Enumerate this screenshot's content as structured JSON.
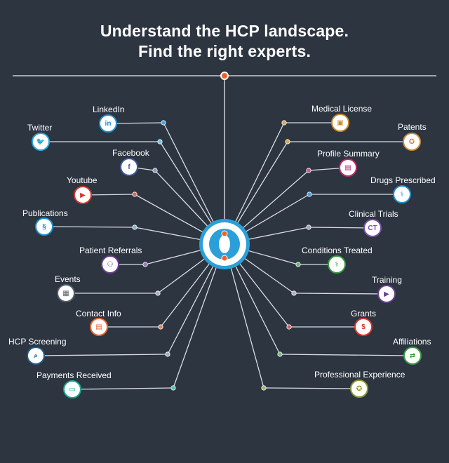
{
  "title": {
    "line1": "Understand the HCP landscape.",
    "line2": "Find the right experts."
  },
  "colors": {
    "background": "#2d3541",
    "line": "#d8dde3",
    "hub_blue": "#2b9fd9",
    "hub_orange": "#e8632b"
  },
  "left_items": [
    {
      "label": "LinkedIn",
      "icon": "linkedin-icon",
      "glyph": "in",
      "color": "#1f8fcf",
      "dot": "#4aa3db"
    },
    {
      "label": "Twitter",
      "icon": "twitter-icon",
      "glyph": "🐦",
      "color": "#2aa7e0",
      "dot": "#6fc0e8"
    },
    {
      "label": "Facebook",
      "icon": "facebook-icon",
      "glyph": "f",
      "color": "#3b5998",
      "dot": "#8a9bb8"
    },
    {
      "label": "Youtube",
      "icon": "youtube-icon",
      "glyph": "▶",
      "color": "#d9342b",
      "dot": "#d86a5e"
    },
    {
      "label": "Publications",
      "icon": "publications-icon",
      "glyph": "§",
      "color": "#1f8fcf",
      "dot": "#8fb3cc"
    },
    {
      "label": "Patient Referrals",
      "icon": "patient-referrals-icon",
      "glyph": "⚇",
      "color": "#6a3d8e",
      "dot": "#9b7aba"
    },
    {
      "label": "Events",
      "icon": "events-icon",
      "glyph": "▦",
      "color": "#555f6b",
      "dot": "#aab2bb"
    },
    {
      "label": "Contact Info",
      "icon": "contact-info-icon",
      "glyph": "▤",
      "color": "#e8632b",
      "dot": "#e8874e"
    },
    {
      "label": "HCP Screening",
      "icon": "hcp-screening-icon",
      "glyph": "⌕",
      "color": "#1f5c8a",
      "dot": "#9fb2c4"
    },
    {
      "label": "Payments Received",
      "icon": "payments-received-icon",
      "glyph": "▭",
      "color": "#1aa58e",
      "dot": "#4fc1ad"
    }
  ],
  "right_items": [
    {
      "label": "Medical License",
      "icon": "medical-license-icon",
      "glyph": "▣",
      "color": "#c98a2a",
      "dot": "#d6a45b"
    },
    {
      "label": "Patents",
      "icon": "patents-icon",
      "glyph": "✪",
      "color": "#d08a2e",
      "dot": "#dca55e"
    },
    {
      "label": "Profile Summary",
      "icon": "profile-summary-icon",
      "glyph": "▤",
      "color": "#c2276b",
      "dot": "#d0588e"
    },
    {
      "label": "Drugs Prescribed",
      "icon": "drugs-prescribed-icon",
      "glyph": "⚕",
      "color": "#1f8fcf",
      "dot": "#4aa3db"
    },
    {
      "label": "Clinical Trials",
      "icon": "clinical-trials-icon",
      "glyph": "CT",
      "color": "#7a4fa8",
      "dot": "#a6a6b0"
    },
    {
      "label": "Conditions Treated",
      "icon": "conditions-treated-icon",
      "glyph": "⚕",
      "color": "#3a9a3f",
      "dot": "#6ab86e"
    },
    {
      "label": "Training",
      "icon": "training-icon",
      "glyph": "▶",
      "color": "#6a3d8e",
      "dot": "#b6a7c6"
    },
    {
      "label": "Grants",
      "icon": "grants-icon",
      "glyph": "$",
      "color": "#d9342b",
      "dot": "#d85f58"
    },
    {
      "label": "Affiliations",
      "icon": "affiliations-icon",
      "glyph": "⇄",
      "color": "#3a9a3f",
      "dot": "#7fb57f"
    },
    {
      "label": "Professional Experience",
      "icon": "professional-experience-icon",
      "glyph": "✪",
      "color": "#8a9a2a",
      "dot": "#a6b06a"
    }
  ]
}
